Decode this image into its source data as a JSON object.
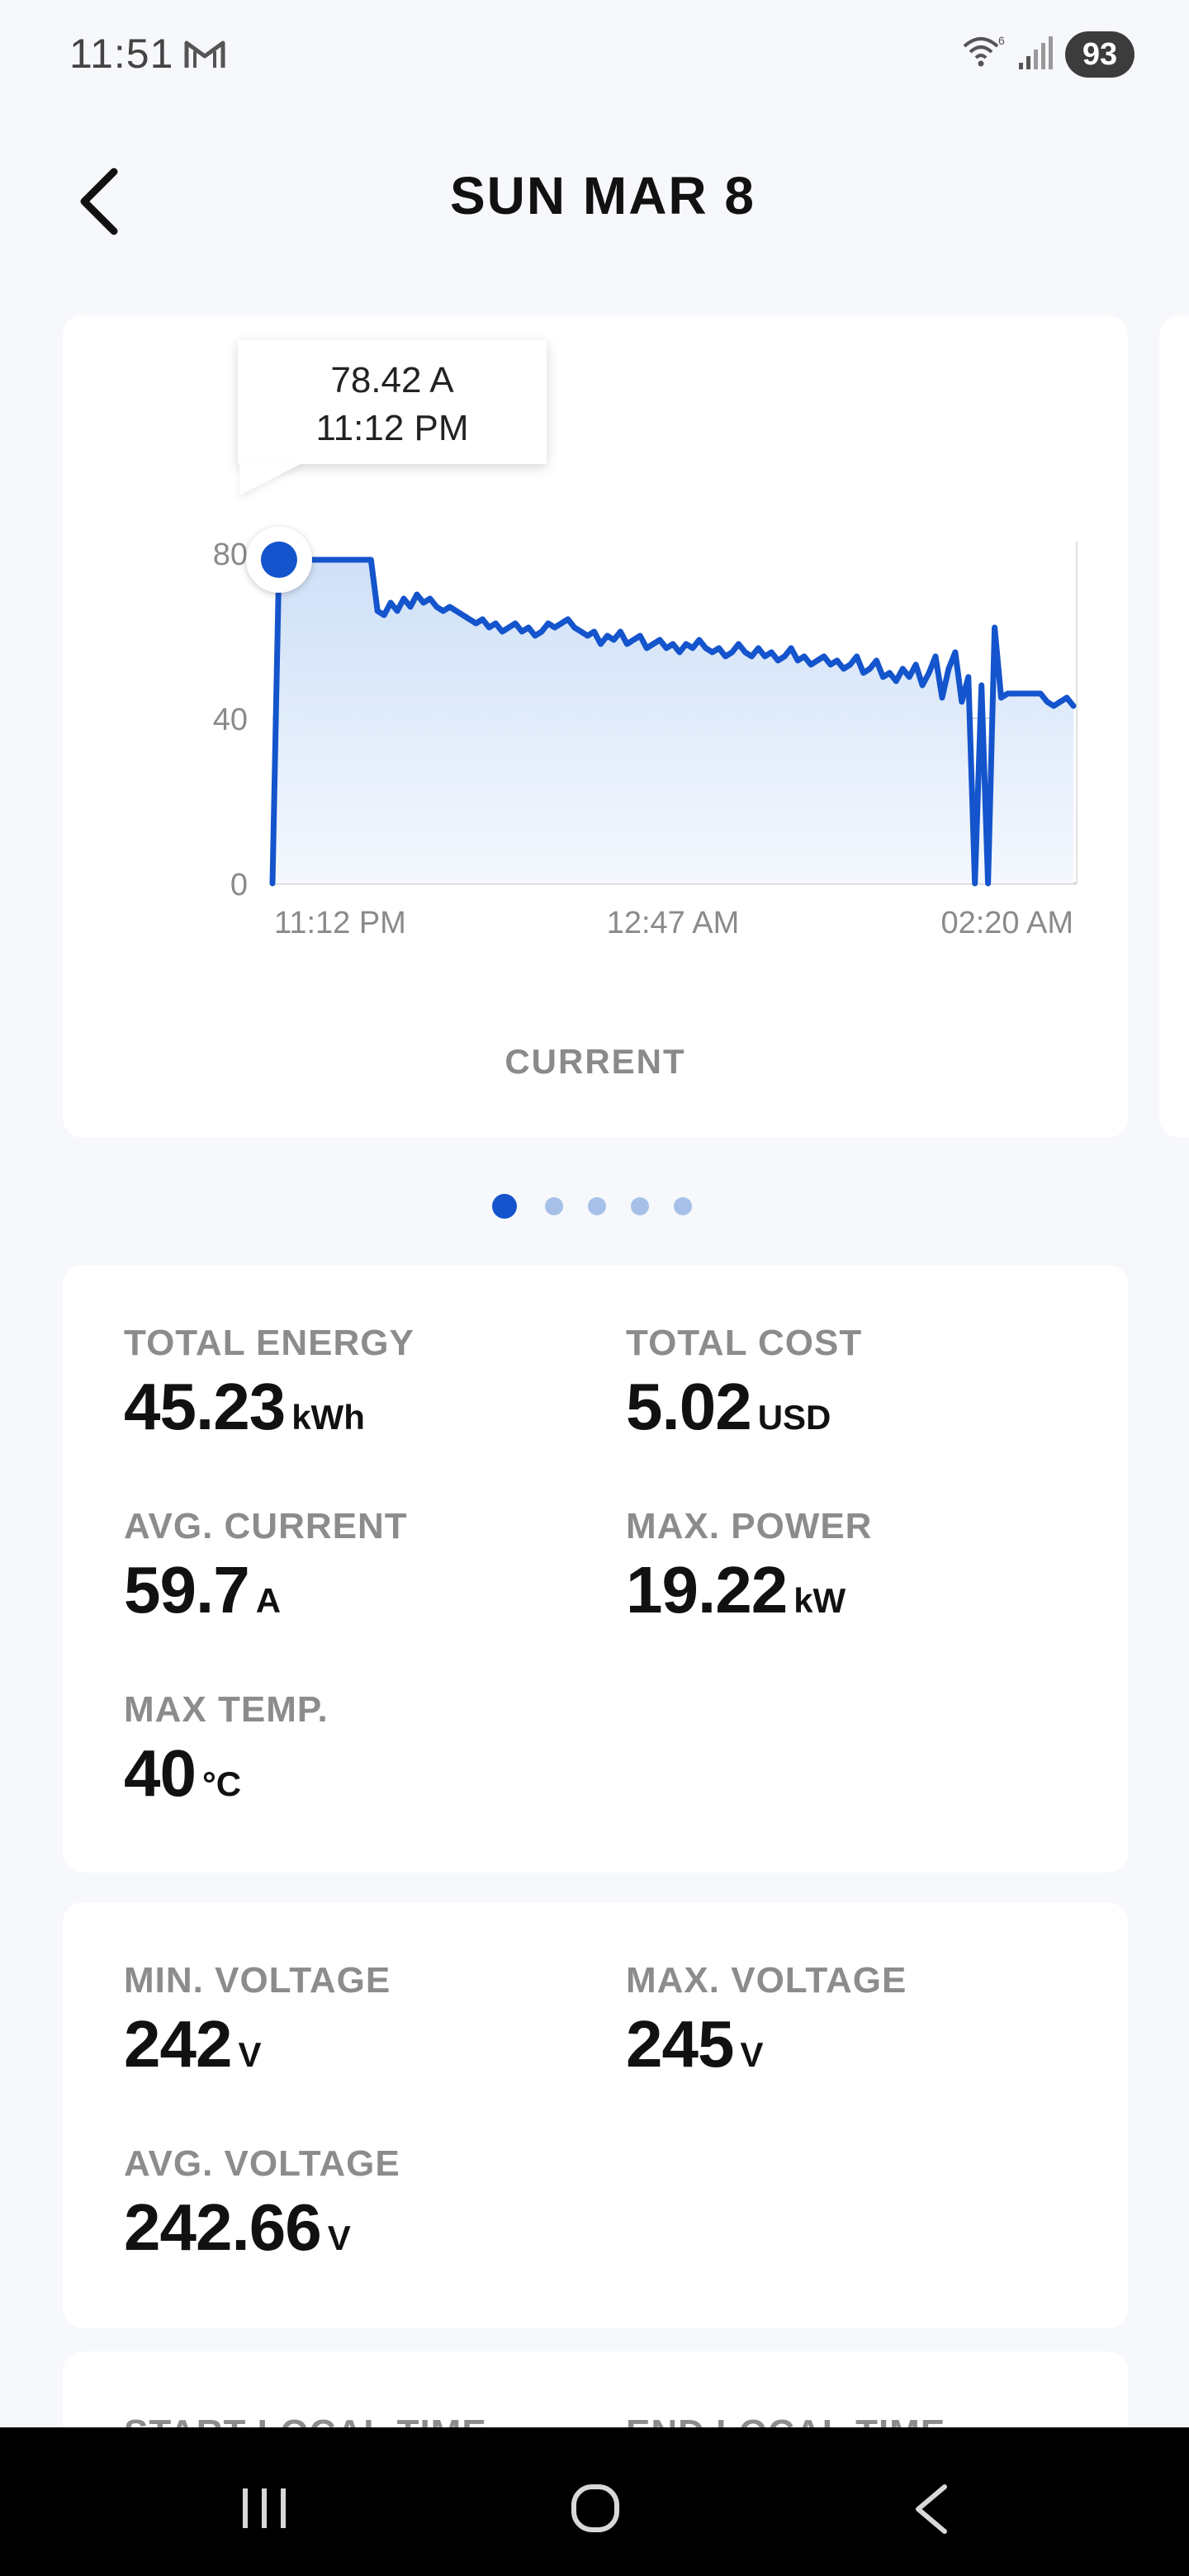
{
  "status_bar": {
    "time": "11:51",
    "battery": "93",
    "icons": [
      "gmail-icon",
      "wifi-6-icon",
      "signal-icon"
    ]
  },
  "header": {
    "title": "SUN MAR 8",
    "back_icon": "chevron-left-icon"
  },
  "chart": {
    "tooltip": {
      "value": "78.42 A",
      "time": "11:12 PM"
    },
    "label": "CURRENT",
    "pager": {
      "count": 5,
      "active": 0
    }
  },
  "chart_data": {
    "type": "area",
    "title": "",
    "xlabel": "",
    "ylabel": "",
    "ylim": [
      0,
      80
    ],
    "y_ticks": [
      "0",
      "40",
      "80"
    ],
    "x_ticks": [
      "11:12 PM",
      "12:47 AM",
      "02:20 AM"
    ],
    "grid": "horizontal at 40",
    "series": [
      {
        "values": [
          0,
          78.4,
          78.4,
          78.4,
          78.4,
          78.4,
          78.4,
          78.4,
          78.4,
          78.4,
          78.4,
          78.4,
          78.4,
          78.4,
          78.4,
          78.4,
          66,
          65,
          68,
          66,
          69,
          67,
          70,
          68,
          69,
          67,
          66,
          67,
          66,
          65,
          64,
          63,
          64,
          62,
          63,
          61,
          62,
          63,
          61,
          62,
          60,
          61,
          63,
          62,
          63,
          64,
          62,
          61,
          60,
          61,
          58,
          60,
          59,
          61,
          58,
          59,
          60,
          57,
          58,
          59,
          57,
          58,
          56,
          58,
          57,
          59,
          57,
          56,
          57,
          55,
          56,
          58,
          56,
          55,
          57,
          55,
          56,
          54,
          55,
          57,
          54,
          55,
          53,
          54,
          55,
          53,
          54,
          52,
          53,
          55,
          51,
          52,
          54,
          50,
          51,
          49,
          52,
          50,
          53,
          48,
          51,
          55,
          45,
          52,
          56,
          44,
          50,
          0,
          48,
          0,
          62,
          45,
          46,
          46,
          46,
          46,
          46,
          46,
          44,
          43,
          44,
          45,
          43
        ]
      }
    ],
    "series_color": "#1454cc",
    "highlight_point": {
      "x": "11:12 PM",
      "y": 78.42
    }
  },
  "stats": {
    "total_energy": {
      "label": "TOTAL ENERGY",
      "value": "45.23",
      "unit": "kWh"
    },
    "total_cost": {
      "label": "TOTAL COST",
      "value": "5.02",
      "unit": "USD"
    },
    "avg_current": {
      "label": "AVG. CURRENT",
      "value": "59.7",
      "unit": "A"
    },
    "max_power": {
      "label": "MAX. POWER",
      "value": "19.22",
      "unit": "kW"
    },
    "max_temp": {
      "label": "MAX TEMP.",
      "value": "40",
      "unit": "°C"
    }
  },
  "voltage": {
    "min": {
      "label": "MIN. VOLTAGE",
      "value": "242",
      "unit": "V"
    },
    "max": {
      "label": "MAX. VOLTAGE",
      "value": "245",
      "unit": "V"
    },
    "avg": {
      "label": "AVG. VOLTAGE",
      "value": "242.66",
      "unit": "V"
    }
  },
  "times": {
    "start_label": "START LOCAL TIME",
    "end_label": "END LOCAL TIME"
  },
  "nav_bar": {
    "icons": [
      "recents-icon",
      "home-icon",
      "back-icon"
    ]
  },
  "colors": {
    "accent": "#1454cc",
    "background": "#f6f8fc",
    "label_gray": "#8c8c8c"
  }
}
